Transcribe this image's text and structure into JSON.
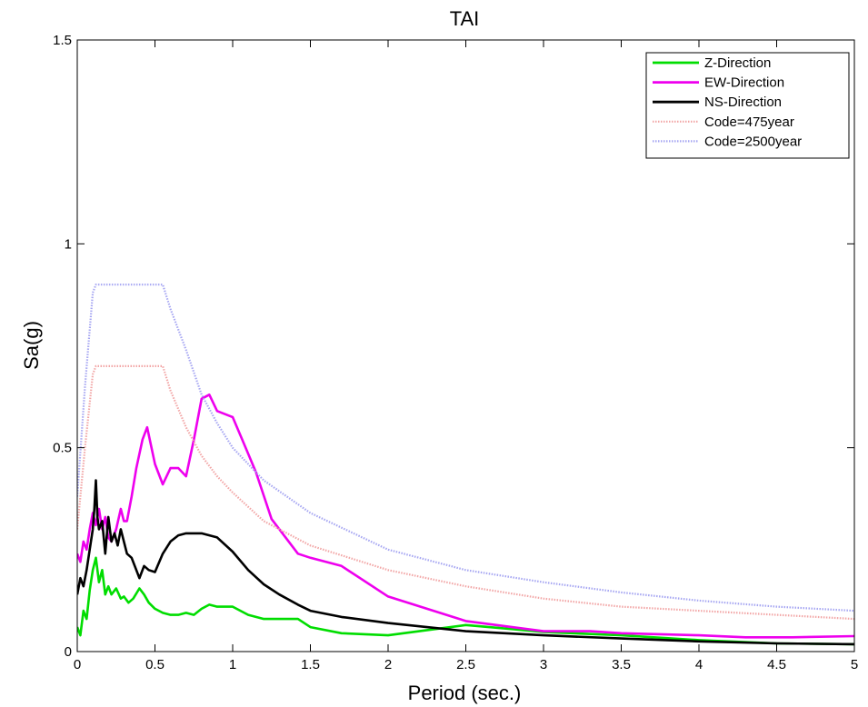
{
  "chart_data": {
    "type": "line",
    "title": "TAI",
    "xlabel": "Period (sec.)",
    "ylabel": "Sa(g)",
    "xlim": [
      0,
      5
    ],
    "ylim": [
      0,
      1.5
    ],
    "xticks": [
      0,
      0.5,
      1,
      1.5,
      2,
      2.5,
      3,
      3.5,
      4,
      4.5,
      5
    ],
    "xtick_labels": [
      "0",
      "0.5",
      "1",
      "1.5",
      "2",
      "2.5",
      "3",
      "3.5",
      "4",
      "4.5",
      "5"
    ],
    "yticks": [
      0,
      0.5,
      1,
      1.5
    ],
    "ytick_labels": [
      "0",
      "0.5",
      "1",
      "1.5"
    ],
    "grid": false,
    "legend_position": "top-right",
    "series": [
      {
        "name": "Z-Direction",
        "color": "#00dd00",
        "style": "solid",
        "x": [
          0,
          0.02,
          0.04,
          0.06,
          0.08,
          0.1,
          0.12,
          0.14,
          0.16,
          0.18,
          0.2,
          0.22,
          0.25,
          0.28,
          0.3,
          0.33,
          0.36,
          0.4,
          0.43,
          0.46,
          0.5,
          0.55,
          0.6,
          0.65,
          0.7,
          0.75,
          0.8,
          0.85,
          0.9,
          1.0,
          1.1,
          1.2,
          1.3,
          1.42,
          1.5,
          1.7,
          2.0,
          2.2,
          2.5,
          2.8,
          3.0,
          3.5,
          4.0,
          4.5,
          5.0
        ],
        "values": [
          0.06,
          0.04,
          0.1,
          0.08,
          0.15,
          0.2,
          0.23,
          0.17,
          0.2,
          0.14,
          0.16,
          0.14,
          0.155,
          0.13,
          0.135,
          0.12,
          0.13,
          0.155,
          0.14,
          0.12,
          0.105,
          0.095,
          0.09,
          0.09,
          0.095,
          0.09,
          0.105,
          0.115,
          0.11,
          0.11,
          0.09,
          0.08,
          0.08,
          0.08,
          0.06,
          0.045,
          0.04,
          0.05,
          0.065,
          0.055,
          0.048,
          0.04,
          0.028,
          0.02,
          0.018
        ]
      },
      {
        "name": "EW-Direction",
        "color": "#ee00ee",
        "style": "solid",
        "x": [
          0,
          0.02,
          0.04,
          0.06,
          0.08,
          0.1,
          0.12,
          0.14,
          0.16,
          0.18,
          0.2,
          0.22,
          0.25,
          0.28,
          0.3,
          0.32,
          0.35,
          0.38,
          0.42,
          0.45,
          0.5,
          0.55,
          0.6,
          0.65,
          0.7,
          0.75,
          0.8,
          0.85,
          0.9,
          1.0,
          1.05,
          1.15,
          1.25,
          1.42,
          1.5,
          1.7,
          2.0,
          2.5,
          3.0,
          3.3,
          3.5,
          4.0,
          4.3,
          4.6,
          5.0
        ],
        "values": [
          0.24,
          0.22,
          0.27,
          0.25,
          0.3,
          0.34,
          0.31,
          0.35,
          0.3,
          0.33,
          0.28,
          0.27,
          0.3,
          0.35,
          0.32,
          0.32,
          0.38,
          0.45,
          0.52,
          0.55,
          0.46,
          0.41,
          0.45,
          0.45,
          0.43,
          0.52,
          0.62,
          0.63,
          0.59,
          0.575,
          0.53,
          0.44,
          0.325,
          0.24,
          0.23,
          0.21,
          0.135,
          0.075,
          0.05,
          0.05,
          0.045,
          0.04,
          0.035,
          0.035,
          0.038
        ]
      },
      {
        "name": "NS-Direction",
        "color": "#000000",
        "style": "solid",
        "x": [
          0,
          0.02,
          0.04,
          0.06,
          0.08,
          0.1,
          0.11,
          0.12,
          0.13,
          0.14,
          0.16,
          0.18,
          0.2,
          0.22,
          0.24,
          0.26,
          0.28,
          0.3,
          0.32,
          0.35,
          0.38,
          0.4,
          0.43,
          0.46,
          0.5,
          0.55,
          0.6,
          0.65,
          0.7,
          0.8,
          0.9,
          1.0,
          1.1,
          1.2,
          1.3,
          1.42,
          1.5,
          1.7,
          2.0,
          2.5,
          3.0,
          3.5,
          4.0,
          4.5,
          5.0
        ],
        "values": [
          0.14,
          0.18,
          0.16,
          0.2,
          0.25,
          0.3,
          0.35,
          0.42,
          0.33,
          0.3,
          0.32,
          0.24,
          0.33,
          0.27,
          0.29,
          0.26,
          0.3,
          0.27,
          0.24,
          0.23,
          0.2,
          0.18,
          0.21,
          0.2,
          0.195,
          0.24,
          0.27,
          0.285,
          0.29,
          0.29,
          0.28,
          0.245,
          0.2,
          0.165,
          0.14,
          0.115,
          0.1,
          0.085,
          0.07,
          0.05,
          0.04,
          0.032,
          0.025,
          0.02,
          0.018
        ]
      },
      {
        "name": "Code=475year",
        "color": "#f2a6a6",
        "style": "dotted",
        "x": [
          0,
          0.05,
          0.1,
          0.12,
          0.55,
          0.6,
          0.7,
          0.8,
          0.9,
          1.0,
          1.2,
          1.5,
          2.0,
          2.5,
          3.0,
          3.5,
          4.0,
          4.5,
          5.0
        ],
        "values": [
          0.3,
          0.5,
          0.68,
          0.7,
          0.7,
          0.64,
          0.55,
          0.48,
          0.43,
          0.39,
          0.32,
          0.26,
          0.2,
          0.16,
          0.13,
          0.11,
          0.1,
          0.09,
          0.08
        ]
      },
      {
        "name": "Code=2500year",
        "color": "#a6a6f2",
        "style": "dotted",
        "x": [
          0,
          0.05,
          0.1,
          0.12,
          0.55,
          0.6,
          0.7,
          0.8,
          0.9,
          1.0,
          1.2,
          1.5,
          2.0,
          2.5,
          3.0,
          3.5,
          4.0,
          4.5,
          5.0
        ],
        "values": [
          0.38,
          0.65,
          0.88,
          0.9,
          0.9,
          0.84,
          0.74,
          0.63,
          0.56,
          0.5,
          0.42,
          0.34,
          0.25,
          0.2,
          0.17,
          0.145,
          0.125,
          0.11,
          0.1
        ]
      }
    ]
  }
}
